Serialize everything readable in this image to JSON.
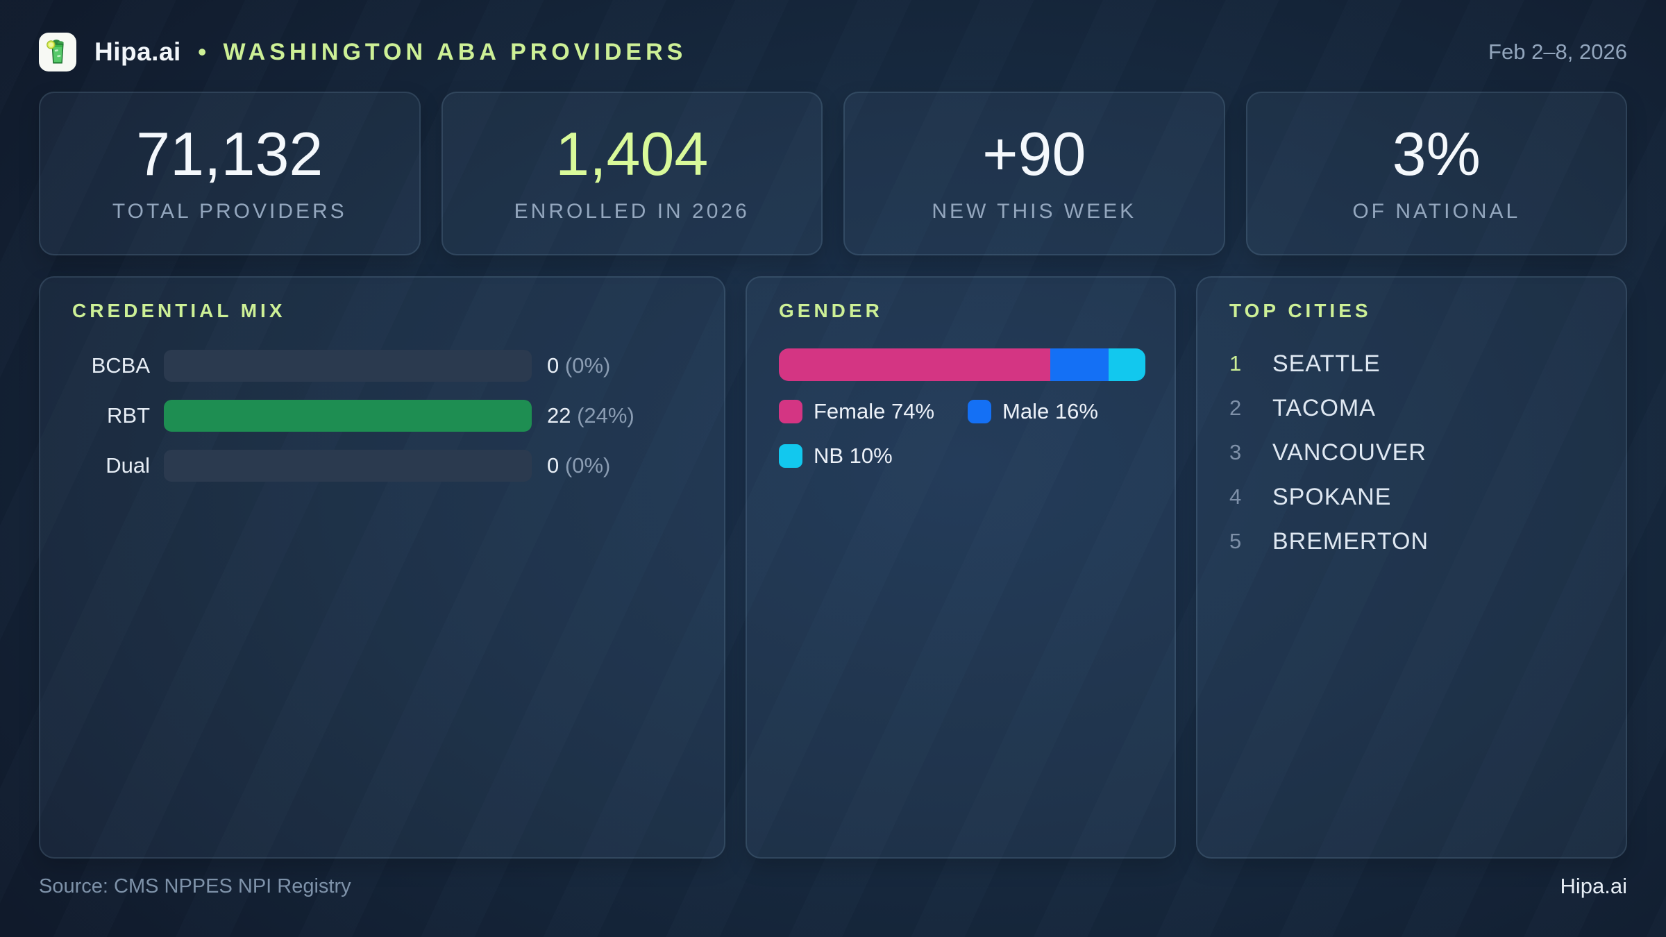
{
  "header": {
    "brand": "Hipa.ai",
    "separator": "•",
    "title": "WASHINGTON ABA PROVIDERS",
    "date_range": "Feb 2–8, 2026",
    "logo_icon": "mojito-glass-icon"
  },
  "stats": [
    {
      "value": "71,132",
      "label": "TOTAL PROVIDERS"
    },
    {
      "value": "1,404",
      "label": "ENROLLED IN 2026"
    },
    {
      "value": "+90",
      "label": "NEW THIS WEEK"
    },
    {
      "value": "3%",
      "label": "OF NATIONAL"
    }
  ],
  "credential_mix": {
    "title": "CREDENTIAL MIX",
    "bar_color": "#1e8e52",
    "rows": [
      {
        "label": "BCBA",
        "count": "0",
        "percent": "(0%)",
        "fill_pct": 0
      },
      {
        "label": "RBT",
        "count": "22",
        "percent": "(24%)",
        "fill_pct": 100
      },
      {
        "label": "Dual",
        "count": "0",
        "percent": "(0%)",
        "fill_pct": 0
      }
    ]
  },
  "gender": {
    "title": "GENDER",
    "segments": [
      {
        "name": "Female",
        "pct": 74,
        "label": "Female 74%",
        "color": "#d43583"
      },
      {
        "name": "Male",
        "pct": 16,
        "label": "Male 16%",
        "color": "#1470f5"
      },
      {
        "name": "NB",
        "pct": 10,
        "label": "NB 10%",
        "color": "#12c8ee"
      }
    ]
  },
  "top_cities": {
    "title": "TOP CITIES",
    "items": [
      {
        "rank": "1",
        "name": "SEATTLE"
      },
      {
        "rank": "2",
        "name": "TACOMA"
      },
      {
        "rank": "3",
        "name": "VANCOUVER"
      },
      {
        "rank": "4",
        "name": "SPOKANE"
      },
      {
        "rank": "5",
        "name": "BREMERTON"
      }
    ]
  },
  "footer": {
    "source": "Source: CMS NPPES NPI Registry",
    "brand": "Hipa.ai"
  },
  "colors": {
    "accent": "#cdf096",
    "accent_number": "#d9fa9a",
    "credential_fill": "#1e8e52",
    "female": "#d43583",
    "male": "#1470f5",
    "nb": "#12c8ee",
    "background_dark": "#101a2b",
    "background_mid": "#1d3350"
  },
  "chart_data": [
    {
      "type": "bar",
      "orientation": "horizontal",
      "title": "CREDENTIAL MIX",
      "categories": [
        "BCBA",
        "RBT",
        "Dual"
      ],
      "values": [
        0,
        22,
        0
      ],
      "percent_labels": [
        "0%",
        "24%",
        "0%"
      ],
      "bar_color": "#1e8e52",
      "track_visible": true
    },
    {
      "type": "bar",
      "subtype": "stacked-horizontal-single",
      "title": "GENDER",
      "categories": [
        "Female",
        "Male",
        "NB"
      ],
      "values": [
        74,
        16,
        10
      ],
      "unit": "%",
      "colors": [
        "#d43583",
        "#1470f5",
        "#12c8ee"
      ],
      "legend_position": "below"
    },
    {
      "type": "table",
      "title": "TOP CITIES",
      "categories": [
        "1",
        "2",
        "3",
        "4",
        "5"
      ],
      "values": [
        "SEATTLE",
        "TACOMA",
        "VANCOUVER",
        "SPOKANE",
        "BREMERTON"
      ]
    }
  ]
}
